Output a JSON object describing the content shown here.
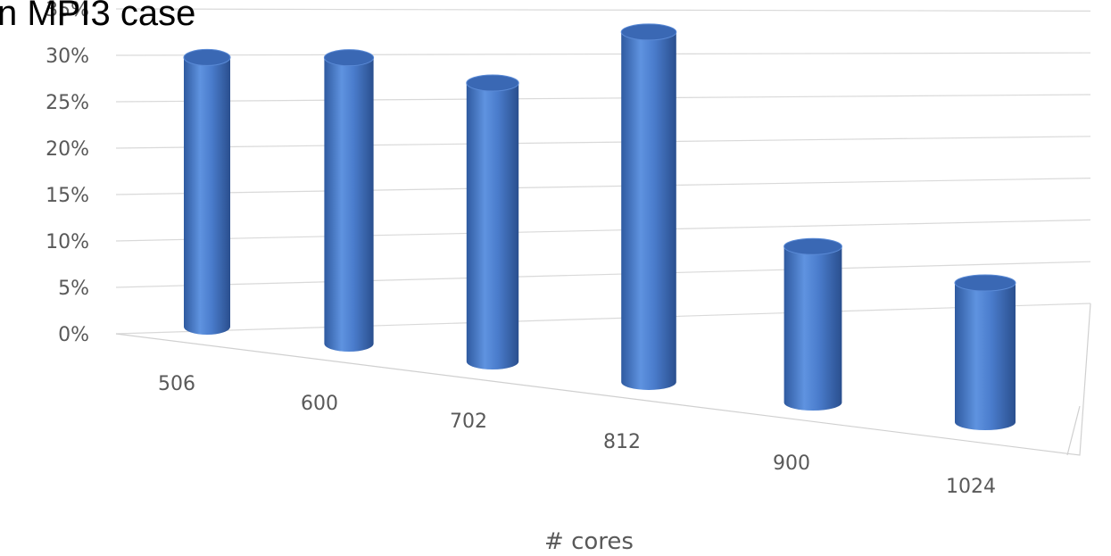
{
  "chart_data": {
    "type": "bar",
    "title": "n MPI3 case",
    "xlabel": "# cores",
    "ylabel": "",
    "categories": [
      "506",
      "600",
      "702",
      "812",
      "900",
      "1024"
    ],
    "values": [
      29,
      28,
      25,
      29,
      12,
      10
    ],
    "ylim": [
      0,
      35
    ],
    "yticks": [
      "0%",
      "5%",
      "10%",
      "15%",
      "20%",
      "25%",
      "30%",
      "35%"
    ],
    "grid": true,
    "legend": "none",
    "bar_shape": "cylinder",
    "bar_color": "#4a7ccc"
  }
}
